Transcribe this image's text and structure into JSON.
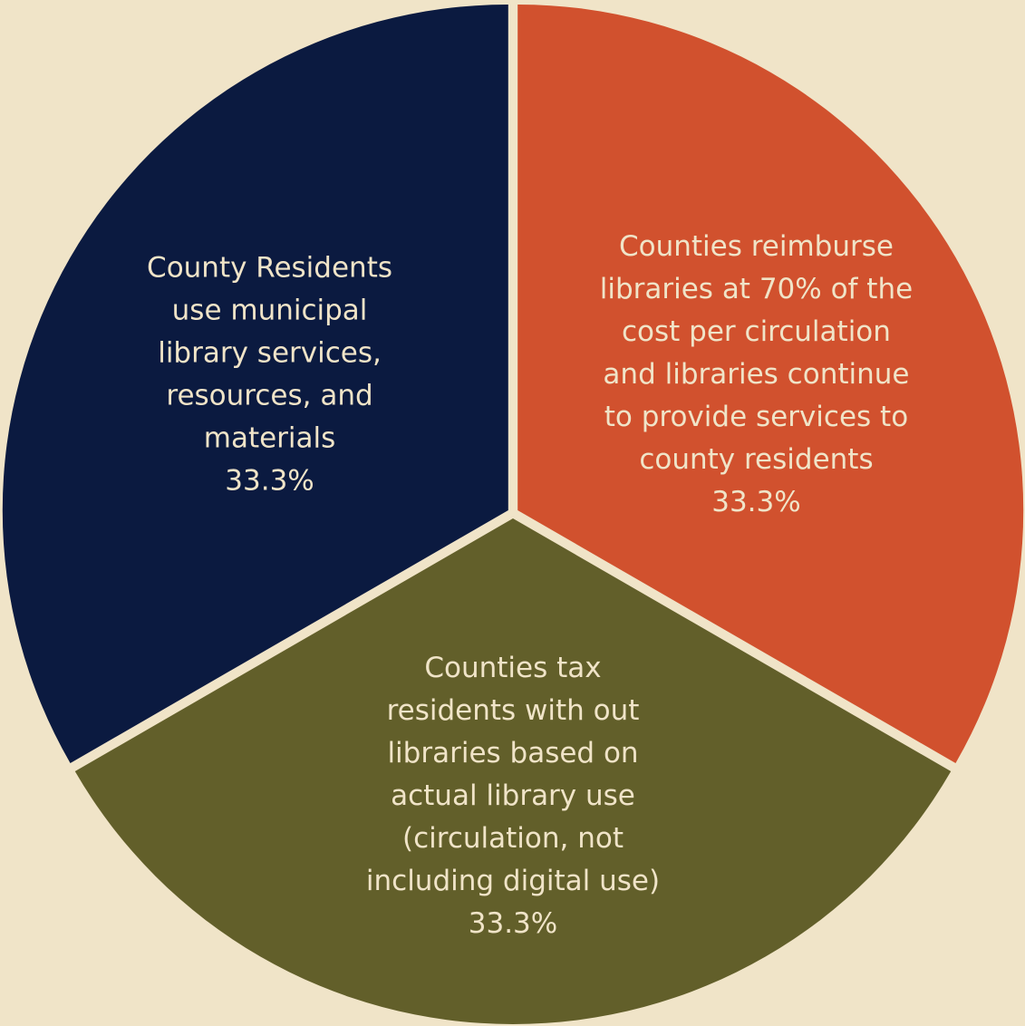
{
  "background_color": "#f0e4c8",
  "label_color": "#f0e4c8",
  "chart_data": {
    "type": "pie",
    "title": "",
    "legend": "none",
    "slices": [
      {
        "label_lines": [
          "Counties reimburse",
          "libraries at 70% of the",
          "cost per circulation",
          "and libraries continue",
          "to provide services to",
          "county residents"
        ],
        "value": 33.3,
        "value_label": "33.3%",
        "color": "#d1512e"
      },
      {
        "label_lines": [
          "Counties tax",
          "residents with out",
          "libraries based on",
          "actual library use",
          "(circulation, not",
          "including digital use)"
        ],
        "value": 33.3,
        "value_label": "33.3%",
        "color": "#625f2a"
      },
      {
        "label_lines": [
          "County Residents",
          "use municipal",
          "library services,",
          "resources, and",
          "materials"
        ],
        "value": 33.3,
        "value_label": "33.3%",
        "color": "#0b1a40"
      }
    ]
  }
}
